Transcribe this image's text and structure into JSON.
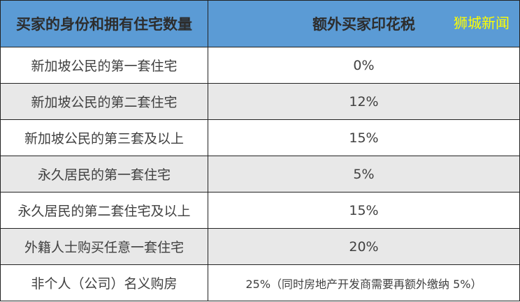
{
  "header": {
    "col1": "买家的身份和拥有住宅数量",
    "col2": "额外买家印花税",
    "watermark": "狮城新闻"
  },
  "colors": {
    "header_bg": "#5b9bd5",
    "watermark": "#ffff00",
    "alt_row": "#e8e8e8"
  },
  "rows": [
    {
      "buyer": "新加坡公民的第一套住宅",
      "tax": "0%"
    },
    {
      "buyer": "新加坡公民的第二套住宅",
      "tax": "12%"
    },
    {
      "buyer": "新加坡公民的第三套及以上",
      "tax": "15%"
    },
    {
      "buyer": "永久居民的第一套住宅",
      "tax": "5%"
    },
    {
      "buyer": "永久居民的第二套住宅及以上",
      "tax": "15%"
    },
    {
      "buyer": "外籍人士购买任意一套住宅",
      "tax": "20%"
    },
    {
      "buyer": "非个人（公司）名义购房",
      "tax": "25%（同时房地产开发商需要再额外缴纳 5%）"
    }
  ]
}
